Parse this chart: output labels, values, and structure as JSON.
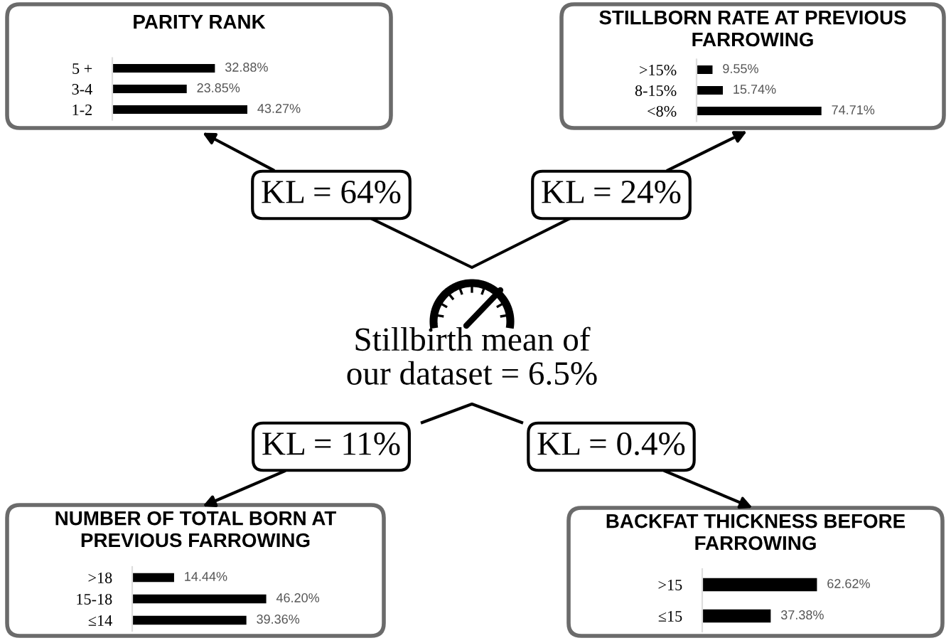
{
  "chart_data": [
    {
      "type": "bar",
      "orientation": "horizontal",
      "title": "PARITY RANK",
      "categories": [
        "5 +",
        "3-4",
        "1-2"
      ],
      "values": [
        32.88,
        23.85,
        43.27
      ],
      "value_labels": [
        "32.88%",
        "23.85%",
        "43.27%"
      ],
      "color": "#000000"
    },
    {
      "type": "bar",
      "orientation": "horizontal",
      "title": "STILLBORN RATE AT PREVIOUS FARROWING",
      "categories": [
        ">15%",
        "8-15%",
        "<8%"
      ],
      "values": [
        9.55,
        15.74,
        74.71
      ],
      "value_labels": [
        "9.55%",
        "15.74%",
        "74.71%"
      ],
      "color": "#000000"
    },
    {
      "type": "bar",
      "orientation": "horizontal",
      "title": "NUMBER OF TOTAL BORN AT PREVIOUS FARROWING",
      "categories": [
        ">18",
        "15-18",
        "≤14"
      ],
      "values": [
        14.44,
        46.2,
        39.36
      ],
      "value_labels": [
        "14.44%",
        "46.20%",
        "39.36%"
      ],
      "color": "#000000"
    },
    {
      "type": "bar",
      "orientation": "horizontal",
      "title": "BACKFAT THICKNESS BEFORE FARROWING",
      "categories": [
        ">15",
        "≤15"
      ],
      "values": [
        62.62,
        37.38
      ],
      "value_labels": [
        "62.62%",
        "37.38%"
      ],
      "color": "#000000"
    },
    {
      "type": "other",
      "annotations": [
        "KL = 64%",
        "KL = 24%",
        "KL = 11%",
        "KL = 0.4%",
        "Stillbirth mean of our dataset = 6.5%"
      ]
    }
  ]
}
